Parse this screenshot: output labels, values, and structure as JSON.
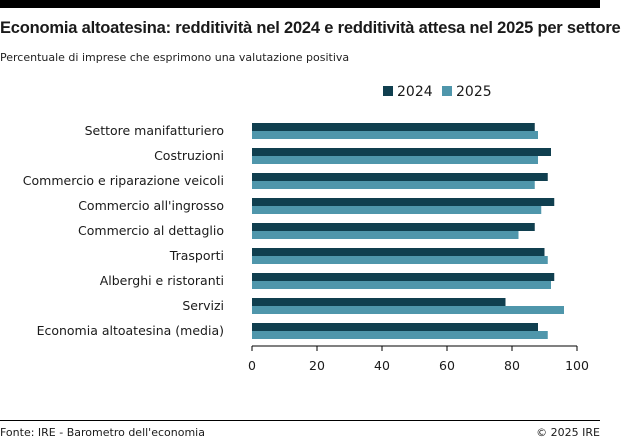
{
  "header": {
    "title": "Economia altoatesina: redditività nel 2024 e redditività attesa nel 2025 per settore",
    "subtitle": "Percentuale di imprese che esprimono una valutazione positiva"
  },
  "footer": {
    "source": "Fonte: IRE - Barometro dell'economia",
    "copyright": "© 2025 IRE"
  },
  "colors": {
    "s2024": "#103f4f",
    "s2025": "#4f96ab",
    "axis": "#000000"
  },
  "chart_data": {
    "type": "bar",
    "orientation": "horizontal",
    "title": "Economia altoatesina: redditività nel 2024 e redditività attesa nel 2025 per settore",
    "subtitle": "Percentuale di imprese che esprimono una valutazione positiva",
    "categories": [
      "Settore manifatturiero",
      "Costruzioni",
      "Commercio e riparazione veicoli",
      "Commercio all'ingrosso",
      "Commercio al dettaglio",
      "Trasporti",
      "Alberghi e ristoranti",
      "Servizi",
      "Economia altoatesina (media)"
    ],
    "series": [
      {
        "name": "2024",
        "values": [
          87,
          92,
          91,
          93,
          87,
          90,
          93,
          78,
          88
        ]
      },
      {
        "name": "2025",
        "values": [
          88,
          88,
          87,
          89,
          82,
          91,
          92,
          96,
          91
        ]
      }
    ],
    "xlim": [
      0,
      100
    ],
    "xticks": [
      0,
      20,
      40,
      60,
      80,
      100
    ],
    "legend_position": "top-right",
    "grid": false
  }
}
